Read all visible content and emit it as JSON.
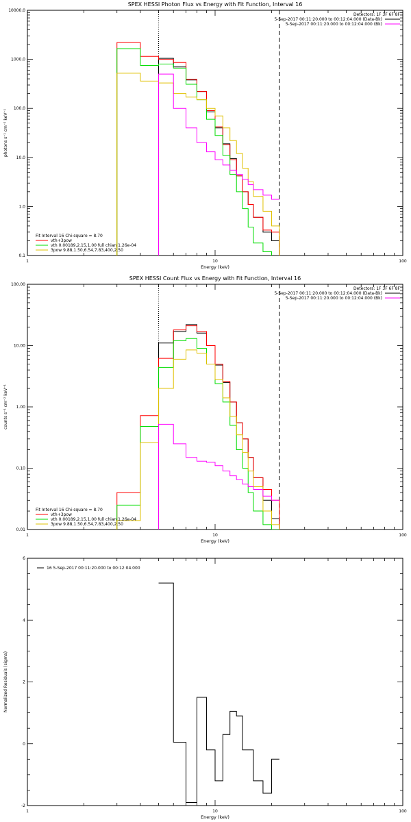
{
  "chart_data": [
    {
      "type": "line",
      "step": true,
      "title": "SPEX HESSI Photon Flux vs Energy with Fit Function, Interval 16",
      "xlabel": "Energy (keV)",
      "ylabel": "photons s⁻¹ cm⁻² keV⁻¹",
      "xscale": "log",
      "yscale": "log",
      "xlim": [
        1,
        100
      ],
      "ylim": [
        0.1,
        10000
      ],
      "xticks": [
        1,
        10,
        100
      ],
      "xtick_labels": [
        "1",
        "10",
        "100"
      ],
      "yticks": [
        0.1,
        1,
        10,
        100,
        1000,
        10000
      ],
      "ytick_labels": [
        "0.1",
        "1.0",
        "10.0",
        "100.0",
        "1000.0",
        "10000.0"
      ],
      "vlines": [
        {
          "x": 5.0,
          "style": "dotted"
        },
        {
          "x": 22.0,
          "style": "dashed"
        }
      ],
      "legend_topright": [
        {
          "text": "Detectors: 1F 3F 6F 8F",
          "color": "#000000",
          "line": false
        },
        {
          "text": "5-Sep-2017 00:11:20.000 to 00:12:04.000 (Data-Bk)",
          "color": "#000000",
          "line": true
        },
        {
          "text": "5-Sep-2017 00:11:20.000 to 00:12:04.000 (Bk)",
          "color": "#ff00ff",
          "line": true
        }
      ],
      "legend_bottomleft": [
        {
          "text": "Fit Interval 16   Chi-square = 8.70",
          "color": "#000000",
          "line": false
        },
        {
          "text": "vth+3pow",
          "color": "#ff0000",
          "line": true
        },
        {
          "text": "vth 0.00189,2.15,1.00  full chian 1.26e-04",
          "color": "#00dd00",
          "line": true
        },
        {
          "text": "3pow 9.88,1.50,6.54,7.83,400,2.50",
          "color": "#e0c000",
          "line": true
        }
      ],
      "edges": [
        3.0,
        4.0,
        5.0,
        6.0,
        7.0,
        8.0,
        9.0,
        10.0,
        11.0,
        12.0,
        13.0,
        14.0,
        15.0,
        16.0,
        18.0,
        20.0,
        22.0
      ],
      "series": [
        {
          "name": "Data-Bk",
          "color": "#000000",
          "x0": 5.0,
          "values": [
            1050,
            700,
            380,
            220,
            85,
            40,
            19,
            9.5,
            4.2,
            2.0,
            1.1,
            0.6,
            0.3,
            0.2
          ]
        },
        {
          "name": "vth+3pow",
          "color": "#ff0000",
          "x0": 3.0,
          "values": [
            2200,
            1150,
            1000,
            860,
            390,
            220,
            90,
            42,
            18,
            9.0,
            4.2,
            2.0,
            1.1,
            0.6,
            0.33,
            0.3
          ]
        },
        {
          "name": "vth",
          "color": "#00dd00",
          "x0": 3.0,
          "values": [
            1650,
            750,
            800,
            660,
            310,
            150,
            60,
            28,
            11,
            4.5,
            2.0,
            0.9,
            0.38,
            0.18,
            0.12,
            0.09
          ]
        },
        {
          "name": "3pow",
          "color": "#e0c000",
          "x0": 3.0,
          "values": [
            520,
            360,
            330,
            200,
            170,
            150,
            100,
            70,
            40,
            22,
            12,
            6,
            3.2,
            1.6,
            0.8,
            0.4
          ]
        },
        {
          "name": "Bk",
          "color": "#ff00ff",
          "x0": 5.0,
          "values": [
            500,
            100,
            40,
            20,
            13,
            9,
            7,
            5.5,
            4.5,
            3.6,
            2.8,
            2.2,
            1.7,
            1.4,
            0.9,
            0.6,
            0.3,
            0.25
          ]
        }
      ]
    },
    {
      "type": "line",
      "step": true,
      "title": "SPEX HESSI Count Flux vs Energy with Fit Function, Interval 16",
      "xlabel": "Energy (keV)",
      "ylabel": "counts s⁻¹ cm⁻² keV⁻¹",
      "xscale": "log",
      "yscale": "log",
      "xlim": [
        1,
        100
      ],
      "ylim": [
        0.01,
        100
      ],
      "xticks": [
        1,
        10,
        100
      ],
      "xtick_labels": [
        "1",
        "10",
        "100"
      ],
      "yticks": [
        0.01,
        0.1,
        1,
        10,
        100
      ],
      "ytick_labels": [
        "0.01",
        "0.10",
        "1.00",
        "10.00",
        "100.00"
      ],
      "vlines": [
        {
          "x": 5.0,
          "style": "dotted"
        },
        {
          "x": 22.0,
          "style": "dashed"
        }
      ],
      "legend_topright": [
        {
          "text": "Detectors: 1F 3F 6F 8F",
          "color": "#000000",
          "line": false
        },
        {
          "text": "5-Sep-2017 00:11:20.000 to 00:12:04.000 (Data-Bk)",
          "color": "#000000",
          "line": true
        },
        {
          "text": "5-Sep-2017 00:11:20.000 to 00:12:04.000 (Bk)",
          "color": "#ff00ff",
          "line": true
        }
      ],
      "legend_bottomleft": [
        {
          "text": "Fit Interval 16   Chi-square = 8.70",
          "color": "#000000",
          "line": false
        },
        {
          "text": "vth+3pow",
          "color": "#ff0000",
          "line": true
        },
        {
          "text": "vth 0.00189,2.15,1.00  full chian 1.26e-04",
          "color": "#00dd00",
          "line": true
        },
        {
          "text": "3pow 9.88,1.50,6.54,7.83,400,2.50",
          "color": "#e0c000",
          "line": true
        }
      ],
      "edges": [
        3.0,
        4.0,
        5.0,
        6.0,
        7.0,
        8.0,
        9.0,
        10.0,
        11.0,
        12.0,
        13.0,
        14.0,
        15.0,
        16.0,
        18.0,
        20.0,
        22.0
      ],
      "series": [
        {
          "name": "Data-Bk",
          "color": "#000000",
          "x0": 5.0,
          "values": [
            11,
            17,
            22,
            16,
            10,
            4.8,
            2.5,
            1.2,
            0.55,
            0.3,
            0.15,
            0.07,
            0.03,
            0.015
          ]
        },
        {
          "name": "vth+3pow",
          "color": "#ff0000",
          "x0": 3.0,
          "values": [
            0.04,
            0.72,
            6.2,
            18,
            21,
            17,
            10,
            5,
            2.6,
            1.2,
            0.55,
            0.3,
            0.15,
            0.07,
            0.045,
            0.03
          ]
        },
        {
          "name": "vth",
          "color": "#00dd00",
          "x0": 3.0,
          "values": [
            0.025,
            0.48,
            4.4,
            12,
            13,
            9,
            5,
            2.4,
            1.2,
            0.5,
            0.2,
            0.1,
            0.04,
            0.02,
            0.012,
            0.01
          ]
        },
        {
          "name": "3pow",
          "color": "#e0c000",
          "x0": 3.0,
          "values": [
            0.014,
            0.26,
            2.0,
            6,
            8.5,
            7.5,
            5,
            2.8,
            1.4,
            0.7,
            0.35,
            0.18,
            0.09,
            0.05,
            0.02,
            0.012
          ]
        },
        {
          "name": "Bk",
          "color": "#ff00ff",
          "x0": 5.0,
          "values": [
            0.52,
            0.25,
            0.15,
            0.13,
            0.125,
            0.11,
            0.09,
            0.075,
            0.065,
            0.055,
            0.05,
            0.045,
            0.035,
            0.03,
            0.025,
            0.02,
            0.015
          ]
        }
      ]
    },
    {
      "type": "line",
      "step": true,
      "title": "",
      "xlabel": "Energy (keV)",
      "ylabel": "Normalized Residuals (sigma)",
      "xscale": "log",
      "yscale": "linear",
      "xlim": [
        1,
        100
      ],
      "ylim": [
        -2,
        6
      ],
      "xticks": [
        1,
        10,
        100
      ],
      "xtick_labels": [
        "1",
        "10",
        "100"
      ],
      "yticks": [
        -2,
        0,
        2,
        4,
        6
      ],
      "ytick_labels": [
        "-2",
        "0",
        "2",
        "4",
        "6"
      ],
      "legend": {
        "text": "16  5-Sep-2017 00:11:20.000 to 00:12:04.000",
        "color": "#000000"
      },
      "edges": [
        5.0,
        6.0,
        7.0,
        8.0,
        9.0,
        10.0,
        11.0,
        12.0,
        13.0,
        14.0,
        15.0,
        16.0,
        18.0,
        20.0,
        22.0
      ],
      "series": [
        {
          "name": "16",
          "color": "#000000",
          "x0": 5.0,
          "values": [
            5.2,
            0.05,
            -1.9,
            1.5,
            -0.2,
            -1.2,
            0.3,
            1.05,
            0.9,
            -0.2,
            -0.2,
            -1.2,
            -1.6,
            -0.5
          ]
        }
      ]
    }
  ]
}
